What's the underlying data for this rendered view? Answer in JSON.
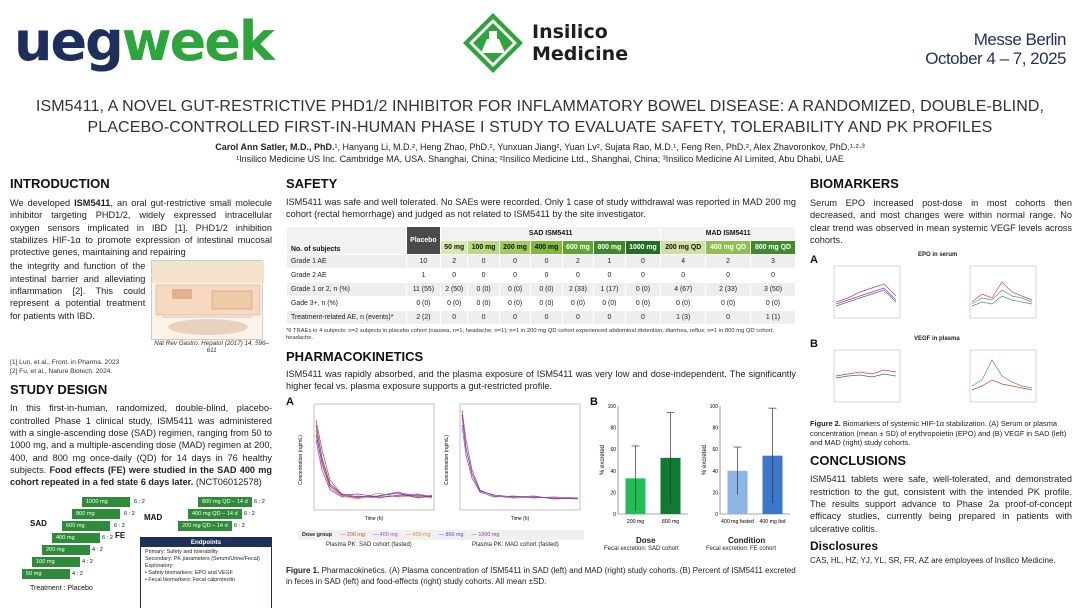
{
  "header": {
    "ueg": "ueg",
    "week": "week",
    "insilico_line1": "Insilico",
    "insilico_line2": "Medicine",
    "venue_line1": "Messe Berlin",
    "venue_line2": "October 4 – 7, 2025",
    "title_line1": "ISM5411, A NOVEL GUT-RESTRICTIVE PHD1/2 INHIBITOR FOR INFLAMMATORY BOWEL DISEASE: A RANDOMIZED, DOUBLE-BLIND,",
    "title_line2": "PLACEBO-CONTROLLED FIRST-IN-HUMAN PHASE I STUDY TO EVALUATE SAFETY, TOLERABILITY AND PK PROFILES",
    "authors_lead": "Carol Ann Satler, M.D., PhD.",
    "authors_rest": "¹, Hanyang Li, M.D.², Heng Zhao, PhD.², Yunxuan Jiang², Yuan Lv², Sujata Rao, M.D.¹, Feng Ren, PhD.², Alex Zhavoronkov, PhD.¹·²·³",
    "affiliations": "¹Insilico Medicine US Inc. Cambridge MA, USA. Shanghai, China; ²Insilico Medicine Ltd., Shanghai, China; ³Insilico Medicine AI Limited, Abu Dhabi, UAE"
  },
  "intro": {
    "heading": "INTRODUCTION",
    "p1_pre": "We developed ",
    "p1_bold": "ISM5411",
    "p1_post": ", an oral gut-restrictive small molecule inhibitor targeting PHD1/2, widely expressed intracellular oxygen sensors implicated in IBD [1]. PHD1/2 inhibition stabilizes HIF-1α to promote expression of intestinal mucosal protective genes, maintaining and repairing",
    "p2": "the integrity and function of the intestinal barrier and alleviating inflammation [2]. This could represent a potential treatment for patients with IBD.",
    "fig_caption": "Nat Rev Gastro. Hepatol (2017) 14, 596–611",
    "ref1": "[1] Lun, et al., Front. in Pharma. 2023",
    "ref2": "[2] Fu, et al., Nature Biotech. 2024."
  },
  "study": {
    "heading": "STUDY DESIGN",
    "text_main": "In this first-in-human, randomized, double-blind, placebo-controlled Phase 1 clinical study, ISM5411 was administered with a single-ascending dose (SAD) regimen, ranging from 50 to 1000 mg, and a multiple-ascending dose (MAD) regimen at 200, 400, and 800 mg once-daily (QD) for 14 days in 76 healthy subjects. ",
    "text_bold": "Food effects (FE) were studied in the SAD 400 mg cohort repeated in a fed state 6 days later.",
    "text_end": " (NCT06012578)",
    "sad_label": "SAD",
    "mad_label": "MAD",
    "fe_label": "FE",
    "sad_steps": [
      "1000 mg",
      "800 mg",
      "600 mg",
      "400 mg",
      "200 mg",
      "100 mg",
      "50 mg"
    ],
    "sad_ratios": [
      "6 : 2",
      "6 : 2",
      "6 : 2",
      "6 : 2",
      "4 : 2",
      "4 : 2",
      "4 : 2"
    ],
    "mad_steps": [
      "800 mg QD – 14 d",
      "400 mg QD – 14 d",
      "200 mg QD – 14 d"
    ],
    "mad_ratios": [
      "6 : 2",
      "6 : 2",
      "6 : 2"
    ],
    "treatment_placebo": "Treatment : Placebo",
    "endpoints_title": "Endpoints",
    "ep_primary": "Primary: Safety and tolerability",
    "ep_secondary": "Secondary: PK parameters (Serum/Urine/Fecal)",
    "ep_exploratory": "Exploratory:",
    "ep_b1": "Safety biomarkers: EPO and VEGF",
    "ep_b2": "Fecal biomarkers: Fecal calprotectin"
  },
  "safety": {
    "heading": "SAFETY",
    "text": "ISM5411 was safe and well tolerated. No SAEs were recorded. Only 1 case of study withdrawal was reported in MAD 200 mg cohort (rectal hemorrhage) and judged as not related to ISM5411 by the site investigator.",
    "table": {
      "col_subjects": "No. of subjects",
      "col_placebo": "Placebo",
      "group_sad": "SAD ISM5411",
      "group_mad": "MAD ISM5411",
      "sad_doses": [
        "50 mg",
        "100 mg",
        "200 mg",
        "400 mg",
        "600 mg",
        "800 mg",
        "1000 mg"
      ],
      "mad_doses": [
        "200 mg QD",
        "400 mg QD",
        "800 mg QD"
      ],
      "sad_colors": [
        "#d8e9b0",
        "#b9d97c",
        "#9fcc5a",
        "#7fba3d",
        "#5ea531",
        "#3d8a2a",
        "#236f22"
      ],
      "mad_colors": [
        "#cfe0a0",
        "#8fbf4f",
        "#3f8a2d"
      ],
      "rows": [
        {
          "label": "Grade 1 AE",
          "values": [
            "10",
            "2",
            "0",
            "0",
            "0",
            "2",
            "1",
            "0",
            "4",
            "2",
            "3"
          ]
        },
        {
          "label": "Grade 2 AE",
          "values": [
            "1",
            "0",
            "0",
            "0",
            "0",
            "0",
            "0",
            "0",
            "0",
            "0",
            "0"
          ]
        },
        {
          "label": "Grade 1 or 2, n (%)",
          "values": [
            "11 (55)",
            "2 (50)",
            "0 (0)",
            "0 (0)",
            "0 (0)",
            "2 (33)",
            "1 (17)",
            "0 (0)",
            "4 (67)",
            "2 (33)",
            "3 (50)"
          ]
        },
        {
          "label": "Gade 3+, n (%)",
          "values": [
            "0 (0)",
            "0 (0)",
            "0 (0)",
            "0 (0)",
            "0 (0)",
            "0 (0)",
            "0 (0)",
            "0 (0)",
            "0 (0)",
            "0 (0)",
            "0 (0)"
          ]
        },
        {
          "label": "Treatment-related AE, n (events)*",
          "values": [
            "2 (2)",
            "0",
            "0",
            "0",
            "0",
            "0",
            "0",
            "0",
            "1 (3)",
            "0",
            "1 (1)"
          ]
        }
      ],
      "footnote": "*6 TRAEs in 4 subjects: n=2 subjects in placebo cohort (nausea, n=1; headache, n=1); n=1 in 200 mg QD cohort experienced abdominal distention, diarrhea, reflux; n=1 in 800 mg QD cohort, headache."
    }
  },
  "pk": {
    "heading": "PHARMACOKINETICS",
    "text": "ISM5411 was rapidly absorbed, and the plasma exposure of ISM5411 was very low and dose-independent. The significantly higher fecal vs. plasma exposure supports a gut-restricted profile.",
    "panel_a": "A",
    "panel_b": "B",
    "ylabel": "Concentration (ng/mL)",
    "xlabel": "Time (h)",
    "sad_caption": "Plasma PK: SAD cohort (fasted)",
    "mad_caption": "Plasma PK: MAD cohort (fasted)",
    "legend_title": "Dose group",
    "legend_items": [
      "200 mg",
      "400 mg",
      "600 mg",
      "800 mg",
      "1000 mg"
    ],
    "legend_colors": [
      "#e0473d",
      "#a64ac9",
      "#e58a2e",
      "#3a56c9",
      "#8e3c8e"
    ],
    "bar_ylabel": "% excreted",
    "dose_title": "Dose",
    "dose_sub": "Fecal excretion: SAD cohort",
    "cond_title": "Condition",
    "cond_sub": "Fecal excretion: FE cohort",
    "caption_bold": "Figure 1.",
    "caption_text": " Pharmacokinetics. (A) Plasma concentration of ISM5411 in SAD (left) and MAD (right) study cohorts. (B) Percent of ISM5411 excreted in feces in SAD (left) and food-effects (right) study cohorts. All mean ±SD."
  },
  "bio": {
    "heading": "BIOMARKERS",
    "text": "Serum EPO increased post-dose in most cohorts then decreased, and most changes were within normal range. No clear trend was observed in mean systemic VEGF levels across cohorts.",
    "panel_a": "A",
    "panel_b": "B",
    "epo_title": "EPO in serum",
    "vegf_title": "VEGF in plasma",
    "caption_bold": "Figure 2.",
    "caption_text": " Biomarkers of systemic HIF-1α stabilization. (A) Serum or plasma concentration (mean ± SD) of erythropoietin (EPO) and (B) VEGF in SAD (left) and MAD (right) study cohorts."
  },
  "conclusions": {
    "heading": "CONCLUSIONS",
    "text": "ISM5411 tablets were safe, well-tolerated, and demonstrated restriction to the gut, consistent with the intended PK profile. The results support advance to Phase 2a proof-of-concept efficacy studies, currently being prepared in patients with ulcerative colitis."
  },
  "disclosures": {
    "heading": "Disclosures",
    "text": "CAS, HL, HZ, YJ, YL, SR, FR, AZ are employees of Insilico Medicine."
  },
  "chart_data": [
    {
      "type": "bar",
      "title": "",
      "xlabel": "Dose",
      "ylabel": "% excreted",
      "categories": [
        "200 mg",
        "800 mg"
      ],
      "values": [
        33,
        52
      ],
      "errors": [
        30,
        42
      ],
      "ylim": [
        0,
        100
      ],
      "colors": [
        "#1fbf55",
        "#0f7a34"
      ]
    },
    {
      "type": "bar",
      "title": "",
      "xlabel": "Condition",
      "ylabel": "% excreted",
      "categories": [
        "400 mg fasted",
        "400 mg fed"
      ],
      "values": [
        40,
        54
      ],
      "errors": [
        22,
        44
      ],
      "ylim": [
        0,
        100
      ],
      "colors": [
        "#8fb4e6",
        "#3d77cc"
      ]
    }
  ]
}
